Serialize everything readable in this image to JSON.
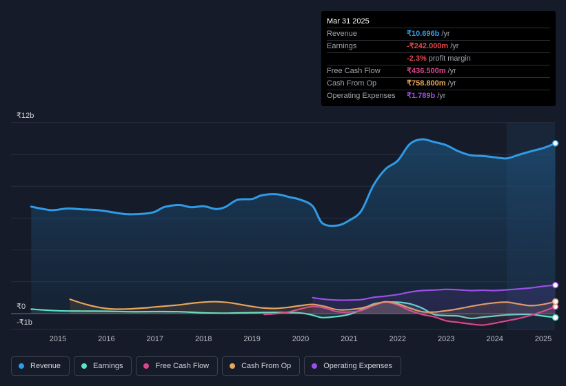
{
  "tooltip": {
    "date": "Mar 31 2025",
    "rows": [
      {
        "label": "Revenue",
        "value": "₹10.696b",
        "unit": "/yr",
        "color": "#2f9be6"
      },
      {
        "label": "Earnings",
        "value": "-₹242.000m",
        "unit": "/yr",
        "color": "#e5484d"
      },
      {
        "label": "",
        "value": "-2.3%",
        "unit": "profit margin",
        "color": "#e5484d"
      },
      {
        "label": "Free Cash Flow",
        "value": "₹436.500m",
        "unit": "/yr",
        "color": "#d6478e"
      },
      {
        "label": "Cash From Op",
        "value": "₹758.800m",
        "unit": "/yr",
        "color": "#e6a65c"
      },
      {
        "label": "Operating Expenses",
        "value": "₹1.789b",
        "unit": "/yr",
        "color": "#9b4fe8"
      }
    ]
  },
  "legend": [
    {
      "label": "Revenue",
      "color": "#2f9be6"
    },
    {
      "label": "Earnings",
      "color": "#5fe0c8"
    },
    {
      "label": "Free Cash Flow",
      "color": "#d6478e"
    },
    {
      "label": "Cash From Op",
      "color": "#e6a65c"
    },
    {
      "label": "Operating Expenses",
      "color": "#9b4fe8"
    }
  ],
  "chart_data": {
    "type": "line",
    "title": "",
    "xlabel": "",
    "ylabel": "",
    "unit": "₹ billions",
    "ylim": [
      -1,
      12
    ],
    "xlim": [
      2014.45,
      2025.25
    ],
    "y_tick_labels": [
      {
        "value": 12,
        "label": "₹12b"
      },
      {
        "value": 0,
        "label": "₹0"
      },
      {
        "value": -1,
        "label": "-₹1b"
      }
    ],
    "x_ticks": [
      2015,
      2016,
      2017,
      2018,
      2019,
      2020,
      2021,
      2022,
      2023,
      2024,
      2025
    ],
    "x_tick_labels": [
      "2015",
      "2016",
      "2017",
      "2018",
      "2019",
      "2020",
      "2021",
      "2022",
      "2023",
      "2024",
      "2025"
    ],
    "highlight_from": 2024.25,
    "series": [
      {
        "name": "Revenue",
        "color": "#2f9be6",
        "fill": true,
        "points": [
          [
            2014.45,
            6.72
          ],
          [
            2014.7,
            6.57
          ],
          [
            2014.9,
            6.5
          ],
          [
            2015.2,
            6.6
          ],
          [
            2015.5,
            6.55
          ],
          [
            2015.75,
            6.52
          ],
          [
            2016.0,
            6.43
          ],
          [
            2016.4,
            6.25
          ],
          [
            2016.8,
            6.28
          ],
          [
            2017.0,
            6.4
          ],
          [
            2017.2,
            6.7
          ],
          [
            2017.5,
            6.82
          ],
          [
            2017.75,
            6.68
          ],
          [
            2018.0,
            6.75
          ],
          [
            2018.25,
            6.57
          ],
          [
            2018.45,
            6.7
          ],
          [
            2018.7,
            7.15
          ],
          [
            2019.0,
            7.2
          ],
          [
            2019.2,
            7.43
          ],
          [
            2019.5,
            7.5
          ],
          [
            2019.8,
            7.3
          ],
          [
            2020.0,
            7.15
          ],
          [
            2020.25,
            6.75
          ],
          [
            2020.45,
            5.68
          ],
          [
            2020.75,
            5.53
          ],
          [
            2021.0,
            5.85
          ],
          [
            2021.25,
            6.45
          ],
          [
            2021.5,
            8.05
          ],
          [
            2021.75,
            9.08
          ],
          [
            2022.0,
            9.6
          ],
          [
            2022.25,
            10.65
          ],
          [
            2022.5,
            10.95
          ],
          [
            2022.75,
            10.78
          ],
          [
            2023.0,
            10.58
          ],
          [
            2023.25,
            10.2
          ],
          [
            2023.5,
            9.95
          ],
          [
            2023.75,
            9.9
          ],
          [
            2024.0,
            9.82
          ],
          [
            2024.25,
            9.75
          ],
          [
            2024.5,
            9.98
          ],
          [
            2024.75,
            10.2
          ],
          [
            2025.0,
            10.4
          ],
          [
            2025.25,
            10.696
          ]
        ]
      },
      {
        "name": "Earnings",
        "color": "#5fe0c8",
        "fill": false,
        "points": [
          [
            2014.45,
            0.28
          ],
          [
            2015.0,
            0.18
          ],
          [
            2015.5,
            0.16
          ],
          [
            2016.0,
            0.15
          ],
          [
            2016.5,
            0.12
          ],
          [
            2017.0,
            0.13
          ],
          [
            2017.5,
            0.12
          ],
          [
            2018.0,
            0.05
          ],
          [
            2018.5,
            0.03
          ],
          [
            2019.0,
            0.06
          ],
          [
            2019.5,
            0.08
          ],
          [
            2020.0,
            0.04
          ],
          [
            2020.25,
            -0.1
          ],
          [
            2020.45,
            -0.25
          ],
          [
            2020.75,
            -0.18
          ],
          [
            2021.0,
            -0.05
          ],
          [
            2021.25,
            0.25
          ],
          [
            2021.5,
            0.6
          ],
          [
            2021.75,
            0.72
          ],
          [
            2022.0,
            0.72
          ],
          [
            2022.25,
            0.62
          ],
          [
            2022.5,
            0.35
          ],
          [
            2022.75,
            -0.05
          ],
          [
            2023.0,
            -0.12
          ],
          [
            2023.25,
            -0.15
          ],
          [
            2023.5,
            -0.3
          ],
          [
            2023.75,
            -0.22
          ],
          [
            2024.0,
            -0.15
          ],
          [
            2024.25,
            -0.08
          ],
          [
            2024.5,
            -0.05
          ],
          [
            2024.75,
            -0.05
          ],
          [
            2025.0,
            -0.15
          ],
          [
            2025.25,
            -0.242
          ]
        ]
      },
      {
        "name": "Free Cash Flow",
        "color": "#d6478e",
        "fill": false,
        "points": [
          [
            2019.25,
            -0.05
          ],
          [
            2019.5,
            0.0
          ],
          [
            2019.75,
            0.1
          ],
          [
            2020.0,
            0.3
          ],
          [
            2020.25,
            0.45
          ],
          [
            2020.5,
            0.35
          ],
          [
            2020.75,
            0.12
          ],
          [
            2021.0,
            0.1
          ],
          [
            2021.25,
            0.2
          ],
          [
            2021.5,
            0.5
          ],
          [
            2021.75,
            0.72
          ],
          [
            2022.0,
            0.55
          ],
          [
            2022.25,
            0.2
          ],
          [
            2022.5,
            -0.05
          ],
          [
            2022.75,
            -0.2
          ],
          [
            2023.0,
            -0.45
          ],
          [
            2023.25,
            -0.55
          ],
          [
            2023.5,
            -0.65
          ],
          [
            2023.75,
            -0.72
          ],
          [
            2024.0,
            -0.6
          ],
          [
            2024.25,
            -0.45
          ],
          [
            2024.5,
            -0.3
          ],
          [
            2024.75,
            -0.1
          ],
          [
            2025.0,
            0.15
          ],
          [
            2025.25,
            0.4365
          ]
        ]
      },
      {
        "name": "Cash From Op",
        "color": "#e6a65c",
        "fill": false,
        "points": [
          [
            2015.25,
            0.9
          ],
          [
            2015.5,
            0.65
          ],
          [
            2015.75,
            0.45
          ],
          [
            2016.0,
            0.32
          ],
          [
            2016.25,
            0.28
          ],
          [
            2016.5,
            0.3
          ],
          [
            2016.75,
            0.35
          ],
          [
            2017.0,
            0.42
          ],
          [
            2017.25,
            0.48
          ],
          [
            2017.5,
            0.55
          ],
          [
            2017.75,
            0.65
          ],
          [
            2018.0,
            0.72
          ],
          [
            2018.25,
            0.75
          ],
          [
            2018.5,
            0.7
          ],
          [
            2018.75,
            0.58
          ],
          [
            2019.0,
            0.45
          ],
          [
            2019.25,
            0.35
          ],
          [
            2019.5,
            0.33
          ],
          [
            2019.75,
            0.4
          ],
          [
            2020.0,
            0.5
          ],
          [
            2020.25,
            0.58
          ],
          [
            2020.5,
            0.45
          ],
          [
            2020.75,
            0.25
          ],
          [
            2021.0,
            0.25
          ],
          [
            2021.25,
            0.35
          ],
          [
            2021.5,
            0.55
          ],
          [
            2021.75,
            0.75
          ],
          [
            2022.0,
            0.62
          ],
          [
            2022.25,
            0.35
          ],
          [
            2022.5,
            0.12
          ],
          [
            2022.75,
            0.1
          ],
          [
            2023.0,
            0.18
          ],
          [
            2023.25,
            0.3
          ],
          [
            2023.5,
            0.45
          ],
          [
            2023.75,
            0.58
          ],
          [
            2024.0,
            0.68
          ],
          [
            2024.25,
            0.72
          ],
          [
            2024.5,
            0.6
          ],
          [
            2024.75,
            0.5
          ],
          [
            2025.0,
            0.58
          ],
          [
            2025.25,
            0.7588
          ]
        ]
      },
      {
        "name": "Operating Expenses",
        "color": "#9b4fe8",
        "fill": false,
        "points": [
          [
            2020.25,
            1.0
          ],
          [
            2020.5,
            0.9
          ],
          [
            2020.75,
            0.85
          ],
          [
            2021.0,
            0.85
          ],
          [
            2021.25,
            0.88
          ],
          [
            2021.5,
            1.02
          ],
          [
            2021.75,
            1.1
          ],
          [
            2022.0,
            1.2
          ],
          [
            2022.25,
            1.35
          ],
          [
            2022.5,
            1.45
          ],
          [
            2022.75,
            1.48
          ],
          [
            2023.0,
            1.52
          ],
          [
            2023.25,
            1.5
          ],
          [
            2023.5,
            1.45
          ],
          [
            2023.75,
            1.47
          ],
          [
            2024.0,
            1.45
          ],
          [
            2024.25,
            1.5
          ],
          [
            2024.5,
            1.55
          ],
          [
            2024.75,
            1.62
          ],
          [
            2025.0,
            1.72
          ],
          [
            2025.25,
            1.789
          ]
        ]
      }
    ]
  }
}
